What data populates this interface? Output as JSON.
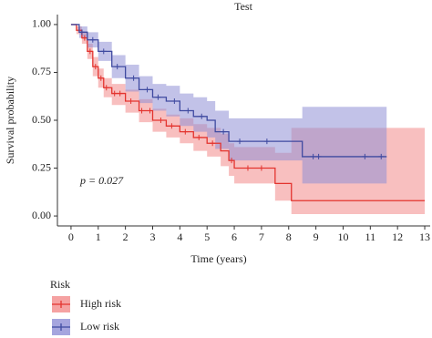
{
  "chart_data": {
    "type": "survival",
    "title": "Test",
    "xlabel": "Time (years)",
    "ylabel": "Survival probability",
    "annotation": "p = 0.027",
    "legend_title": "Risk",
    "xlim": [
      -0.5,
      13.2
    ],
    "ylim": [
      -0.052,
      1.052
    ],
    "xticks": [
      0,
      1,
      2,
      3,
      4,
      5,
      6,
      7,
      8,
      9,
      10,
      11,
      12,
      13
    ],
    "yticks": [
      {
        "value": 0,
        "label": "0.00"
      },
      {
        "value": 0.25,
        "label": "0.25"
      },
      {
        "value": 0.5,
        "label": "0.50"
      },
      {
        "value": 0.75,
        "label": "0.75"
      },
      {
        "value": 1,
        "label": "1.00"
      }
    ],
    "series": [
      {
        "name": "High risk",
        "color": "#e3342f",
        "band_color": "#f28b8b",
        "x": [
          0,
          0.2,
          0.4,
          0.6,
          0.8,
          1.0,
          1.2,
          1.5,
          2.0,
          2.5,
          3.0,
          3.5,
          4.0,
          4.5,
          5.0,
          5.5,
          5.8,
          6.0,
          7.5,
          8.1,
          13
        ],
        "values": [
          1,
          0.97,
          0.93,
          0.86,
          0.78,
          0.72,
          0.67,
          0.64,
          0.6,
          0.55,
          0.5,
          0.47,
          0.44,
          0.41,
          0.38,
          0.34,
          0.29,
          0.25,
          0.17,
          0.08,
          0.08
        ],
        "lower": [
          1,
          0.95,
          0.9,
          0.82,
          0.73,
          0.67,
          0.62,
          0.58,
          0.54,
          0.49,
          0.44,
          0.41,
          0.38,
          0.34,
          0.31,
          0.26,
          0.21,
          0.17,
          0.08,
          0.01,
          0.01
        ],
        "upper": [
          1,
          0.99,
          0.96,
          0.9,
          0.83,
          0.77,
          0.72,
          0.69,
          0.66,
          0.61,
          0.56,
          0.53,
          0.51,
          0.48,
          0.46,
          0.43,
          0.38,
          0.36,
          0.33,
          0.46,
          0.46
        ],
        "censored": [
          0.5,
          0.7,
          0.9,
          1.1,
          1.3,
          1.6,
          1.8,
          2.2,
          2.6,
          2.9,
          3.3,
          3.7,
          4.2,
          4.7,
          5.2,
          5.9,
          6.5,
          7.0
        ]
      },
      {
        "name": "Low risk",
        "color": "#3f4aa0",
        "band_color": "#8f8fd6",
        "x": [
          0,
          0.3,
          0.6,
          1.0,
          1.5,
          2.0,
          2.5,
          3.0,
          3.5,
          4.0,
          4.5,
          5.0,
          5.3,
          5.8,
          8.5,
          11.6
        ],
        "values": [
          1,
          0.96,
          0.92,
          0.86,
          0.78,
          0.72,
          0.66,
          0.62,
          0.6,
          0.55,
          0.52,
          0.5,
          0.44,
          0.39,
          0.31,
          0.31
        ],
        "lower": [
          1,
          0.93,
          0.88,
          0.81,
          0.72,
          0.65,
          0.59,
          0.55,
          0.52,
          0.47,
          0.44,
          0.41,
          0.35,
          0.29,
          0.17,
          0.17
        ],
        "upper": [
          1,
          0.99,
          0.96,
          0.91,
          0.84,
          0.79,
          0.73,
          0.69,
          0.68,
          0.64,
          0.62,
          0.6,
          0.55,
          0.51,
          0.57,
          0.57
        ],
        "censored": [
          0.4,
          0.8,
          1.2,
          1.7,
          2.3,
          2.8,
          3.2,
          3.8,
          4.3,
          4.8,
          5.6,
          6.2,
          7.2,
          8.9,
          9.1,
          10.8,
          11.4
        ]
      }
    ]
  }
}
